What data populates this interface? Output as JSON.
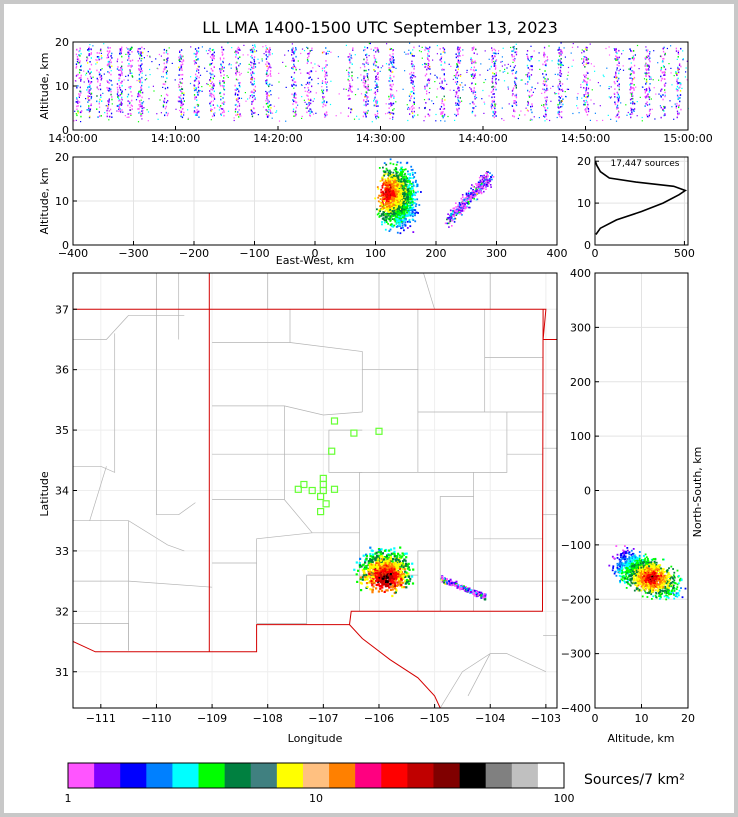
{
  "title": "LL LMA 1400-1500 UTC September 13, 2023",
  "chart_data": [
    {
      "type": "scatter",
      "panel": "altitude-time",
      "xlabel": "",
      "ylabel": "Altitude, km",
      "xticks": [
        "14:00:00",
        "14:10:00",
        "14:20:00",
        "14:30:00",
        "14:40:00",
        "14:50:00",
        "15:00:00"
      ],
      "xlim": [
        0,
        60
      ],
      "ylim": [
        0,
        20
      ],
      "yticks": [
        0,
        10,
        20
      ],
      "dense_columns_minutes": [
        0.5,
        1.5,
        2.5,
        3.5,
        4.5,
        5.5,
        6.5,
        9,
        10.5,
        12,
        13.5,
        14.5,
        16,
        17.5,
        19,
        21.5,
        23,
        24.5,
        27,
        28.5,
        29.5,
        31,
        33,
        34.5,
        36,
        37.5,
        39,
        41,
        43,
        44.5,
        46,
        47.5,
        50,
        53,
        54.5,
        56,
        57.5,
        59
      ]
    },
    {
      "type": "scatter",
      "panel": "altitude-east-west",
      "xlabel": "East-West, km",
      "ylabel": "Altitude, km",
      "xlim": [
        -400,
        400
      ],
      "ylim": [
        0,
        20
      ],
      "xticks": [
        -400,
        -300,
        -200,
        -100,
        0,
        100,
        200,
        300,
        400
      ],
      "yticks": [
        0,
        10,
        20
      ],
      "clusters": [
        {
          "x_range": [
            95,
            175
          ],
          "alt_range": [
            2,
            20
          ]
        },
        {
          "x_range": [
            220,
            290
          ],
          "alt_range": [
            5,
            20
          ]
        }
      ]
    },
    {
      "type": "line",
      "panel": "altitude-histogram",
      "annotation": "17,447 sources",
      "xlim": [
        0,
        520
      ],
      "ylim": [
        0,
        21
      ],
      "xticks": [
        0,
        500
      ],
      "yticks": [
        0,
        10,
        20
      ],
      "profile": [
        {
          "alt": 2.5,
          "count": 5
        },
        {
          "alt": 4,
          "count": 30
        },
        {
          "alt": 6,
          "count": 120
        },
        {
          "alt": 8,
          "count": 260
        },
        {
          "alt": 10,
          "count": 380
        },
        {
          "alt": 12,
          "count": 470
        },
        {
          "alt": 13,
          "count": 505
        },
        {
          "alt": 14,
          "count": 440
        },
        {
          "alt": 15,
          "count": 230
        },
        {
          "alt": 16,
          "count": 80
        },
        {
          "alt": 17.5,
          "count": 30
        },
        {
          "alt": 19,
          "count": 10
        },
        {
          "alt": 20,
          "count": 2
        }
      ]
    },
    {
      "type": "scatter",
      "panel": "plan-view-map",
      "xlabel": "Longitude",
      "ylabel": "Latitude",
      "xlim": [
        -111.5,
        -102.8
      ],
      "ylim": [
        30.4,
        37.6
      ],
      "xticks": [
        -111,
        -110,
        -109,
        -108,
        -107,
        -106,
        -105,
        -104,
        -103
      ],
      "yticks": [
        31,
        32,
        33,
        34,
        35,
        36,
        37
      ],
      "stations": [
        {
          "lon": -106.8,
          "lat": 35.15
        },
        {
          "lon": -106.45,
          "lat": 34.95
        },
        {
          "lon": -106.0,
          "lat": 34.98
        },
        {
          "lon": -106.85,
          "lat": 34.65
        },
        {
          "lon": -107.0,
          "lat": 34.2
        },
        {
          "lon": -107.35,
          "lat": 34.1
        },
        {
          "lon": -107.0,
          "lat": 34.1
        },
        {
          "lon": -107.2,
          "lat": 34.0
        },
        {
          "lon": -107.45,
          "lat": 34.02
        },
        {
          "lon": -107.0,
          "lat": 34.0
        },
        {
          "lon": -106.8,
          "lat": 34.02
        },
        {
          "lon": -107.05,
          "lat": 33.9
        },
        {
          "lon": -106.95,
          "lat": 33.78
        },
        {
          "lon": -107.05,
          "lat": 33.65
        }
      ],
      "clusters": [
        {
          "lon_range": [
            -106.5,
            -105.3
          ],
          "lat_range": [
            32.2,
            33.15
          ]
        },
        {
          "lon_range": [
            -104.9,
            -104.1
          ],
          "lat_range": [
            32.2,
            32.65
          ]
        }
      ]
    },
    {
      "type": "scatter",
      "panel": "north-south-altitude",
      "xlabel": "Altitude, km",
      "ylabel": "North-South, km",
      "xlim": [
        0,
        20
      ],
      "ylim": [
        -400,
        400
      ],
      "xticks": [
        0,
        10,
        20
      ],
      "yticks": [
        -400,
        -300,
        -200,
        -100,
        0,
        100,
        200,
        300,
        400
      ],
      "clusters": [
        {
          "alt_range": [
            2,
            20
          ],
          "ns_range": [
            -200,
            -90
          ]
        }
      ]
    }
  ],
  "colorbar": {
    "label": "Sources/7 km²",
    "tick_labels": [
      "1",
      "10",
      "100"
    ],
    "colors": [
      "#ff55ff",
      "#8000ff",
      "#0000ff",
      "#0080ff",
      "#00ffff",
      "#00ff00",
      "#008040",
      "#408080",
      "#ffff00",
      "#ffc080",
      "#ff8000",
      "#ff0080",
      "#ff0000",
      "#c00000",
      "#800000",
      "#000000",
      "#808080",
      "#c0c0c0",
      "#ffffff"
    ]
  }
}
